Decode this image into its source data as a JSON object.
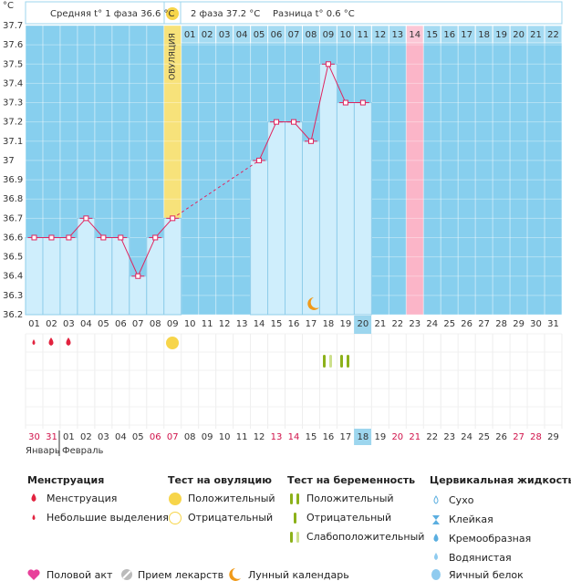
{
  "header": {
    "phase1": "Средняя t° 1 фаза 36.6 °C",
    "phase2": "2 фаза 37.2 °C",
    "difference": "Разница t° 0.6 °C"
  },
  "chart_data": {
    "type": "line",
    "y_label": "°C",
    "ovulation_label": "ОВУЛЯЦИЯ",
    "categories": [
      "01",
      "02",
      "03",
      "04",
      "05",
      "06",
      "07",
      "08",
      "09",
      "10",
      "11",
      "12",
      "13",
      "14",
      "15",
      "16",
      "17",
      "18",
      "19",
      "20",
      "21",
      "22",
      "23",
      "24",
      "25",
      "26",
      "27",
      "28",
      "29",
      "30",
      "31"
    ],
    "cycle_days": [
      null,
      null,
      null,
      null,
      null,
      null,
      null,
      null,
      null,
      "01",
      "02",
      "03",
      "04",
      "05",
      "06",
      "07",
      "08",
      "09",
      "10",
      "11",
      "12",
      "13",
      "14",
      "15",
      "16",
      "17",
      "18",
      "19",
      "20",
      "21",
      "22"
    ],
    "dates": [
      "30",
      "31",
      "01",
      "02",
      "03",
      "04",
      "05",
      "06",
      "07",
      "08",
      "09",
      "10",
      "11",
      "12",
      "13",
      "14",
      "15",
      "16",
      "17",
      "18",
      "19",
      "20",
      "21",
      "22",
      "23",
      "24",
      "25",
      "26",
      "27",
      "28",
      "29"
    ],
    "date_colors": [
      "#d0124a",
      "#d0124a",
      "#333",
      "#333",
      "#333",
      "#333",
      "#333",
      "#d0124a",
      "#d0124a",
      "#333",
      "#333",
      "#333",
      "#333",
      "#333",
      "#d0124a",
      "#d0124a",
      "#333",
      "#333",
      "#333",
      "#333",
      "#333",
      "#d0124a",
      "#d0124a",
      "#333",
      "#333",
      "#333",
      "#333",
      "#333",
      "#d0124a",
      "#d0124a",
      "#333"
    ],
    "months": [
      "Январь",
      "Февраль"
    ],
    "series": [
      {
        "color": "#e0245e",
        "values": [
          36.6,
          36.6,
          36.6,
          36.7,
          36.6,
          36.6,
          36.4,
          36.6,
          36.7,
          null,
          null,
          null,
          null,
          37.0,
          37.2,
          37.2,
          37.1,
          37.5,
          37.3,
          37.3,
          null,
          null,
          null,
          null,
          null,
          null,
          null,
          null,
          null,
          null,
          null
        ]
      }
    ],
    "ylim": [
      36.2,
      37.7
    ],
    "yticks": [
      36.2,
      36.3,
      36.4,
      36.5,
      36.6,
      36.7,
      36.8,
      36.9,
      37,
      37.1,
      37.2,
      37.3,
      37.4,
      37.5,
      37.6,
      37.7
    ],
    "grid": true
  },
  "legend": {
    "menstruation": {
      "title": "Менструация",
      "items": [
        "Менструация",
        "Небольшие выделения"
      ]
    },
    "ovulation_test": {
      "title": "Тест на овуляцию",
      "items": [
        "Положительный",
        "Отрицательный"
      ]
    },
    "pregnancy_test": {
      "title": "Тест на беременность",
      "items": [
        "Положительный",
        "Отрицательный",
        "Слабоположительный"
      ]
    },
    "cervical_fluid": {
      "title": "Цервикальная жидкость",
      "items": [
        "Сухо",
        "Клейкая",
        "Кремообразная",
        "Водянистая",
        "Яичный белок"
      ]
    },
    "other": [
      "Половой акт",
      "Прием лекарств",
      "Лунный календарь"
    ]
  }
}
